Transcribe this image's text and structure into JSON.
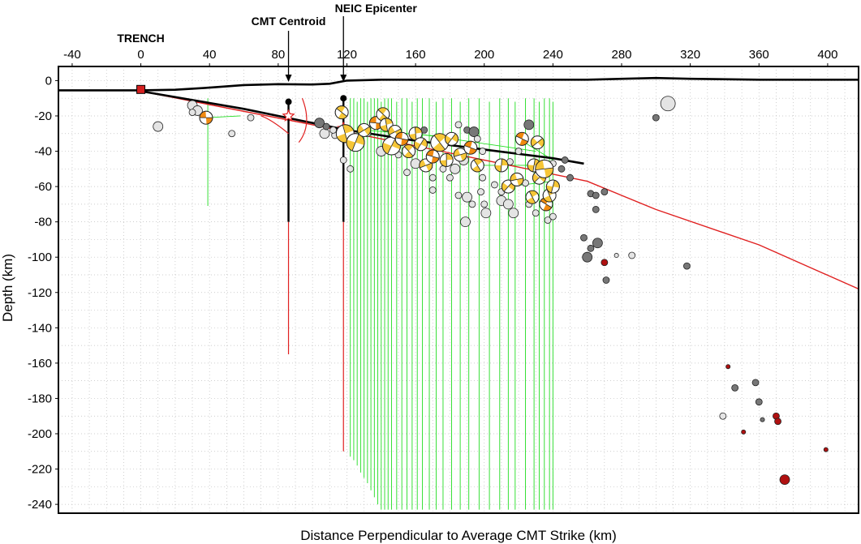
{
  "chart_data": {
    "type": "scatter",
    "title": "",
    "xlabel": "Distance Perpendicular to Average CMT Strike (km)",
    "ylabel": "Depth (km)",
    "xlim": [
      -48,
      418
    ],
    "ylim": [
      -245,
      8
    ],
    "xticks": [
      -40,
      0,
      40,
      80,
      120,
      160,
      200,
      240,
      280,
      320,
      360,
      400
    ],
    "yticks": [
      0,
      -20,
      -40,
      -60,
      -80,
      -100,
      -120,
      -140,
      -160,
      -180,
      -200,
      -220,
      -240
    ],
    "x_minor_step": 10,
    "y_minor_step": 10,
    "grid": "dotted",
    "annotations": [
      {
        "label": "TRENCH",
        "x": 0,
        "depth": -5
      },
      {
        "label": "CMT Centroid",
        "x": 86,
        "depth": -20
      },
      {
        "label": "NEIC Epicenter",
        "x": 118,
        "depth": -26
      }
    ],
    "topography": [
      [
        -48,
        -5.5
      ],
      [
        0,
        -5.5
      ],
      [
        20,
        -5.2
      ],
      [
        40,
        -4
      ],
      [
        60,
        -2.5
      ],
      [
        80,
        -2
      ],
      [
        100,
        -2.2
      ],
      [
        110,
        -1.8
      ],
      [
        120,
        0
      ],
      [
        140,
        0.5
      ],
      [
        200,
        0.5
      ],
      [
        260,
        0.5
      ],
      [
        300,
        1.5
      ],
      [
        320,
        1
      ],
      [
        360,
        0.5
      ],
      [
        418,
        0.5
      ]
    ],
    "slab_interface": [
      [
        0,
        -6
      ],
      [
        60,
        -16
      ],
      [
        100,
        -24
      ],
      [
        120,
        -28
      ],
      [
        160,
        -34
      ],
      [
        200,
        -39
      ],
      [
        240,
        -44
      ],
      [
        258,
        -47
      ]
    ],
    "reference_line": [
      [
        0,
        -6
      ],
      [
        100,
        -25
      ],
      [
        200,
        -45
      ],
      [
        260,
        -57
      ],
      [
        300,
        -73
      ],
      [
        360,
        -93
      ],
      [
        418,
        -118
      ]
    ],
    "cmt_marker": {
      "x": 86,
      "depth_top": -12,
      "depth_bottom": -80,
      "red_bottom": -155
    },
    "neic_marker": {
      "x": 118,
      "depth_top": -10,
      "depth_bottom": -80,
      "red_bottom": -210
    },
    "green_drop_lines": [
      {
        "x": 39,
        "top": -10,
        "bottom": -71
      },
      {
        "x": 122,
        "top": -10,
        "bottom": -213
      },
      {
        "x": 124,
        "top": -10,
        "bottom": -215
      },
      {
        "x": 126,
        "top": -12,
        "bottom": -218
      },
      {
        "x": 128,
        "top": -10,
        "bottom": -222
      },
      {
        "x": 130,
        "top": -10,
        "bottom": -225
      },
      {
        "x": 132,
        "top": -12,
        "bottom": -228
      },
      {
        "x": 134,
        "top": -10,
        "bottom": -232
      },
      {
        "x": 136,
        "top": -10,
        "bottom": -236
      },
      {
        "x": 138,
        "top": -10,
        "bottom": -240
      },
      {
        "x": 140,
        "top": -12,
        "bottom": -243
      },
      {
        "x": 142,
        "top": -10,
        "bottom": -243
      },
      {
        "x": 144,
        "top": -10,
        "bottom": -243
      },
      {
        "x": 146,
        "top": -10,
        "bottom": -243
      },
      {
        "x": 149,
        "top": -12,
        "bottom": -243
      },
      {
        "x": 152,
        "top": -10,
        "bottom": -243
      },
      {
        "x": 155,
        "top": -10,
        "bottom": -243
      },
      {
        "x": 158,
        "top": -12,
        "bottom": -243
      },
      {
        "x": 161,
        "top": -10,
        "bottom": -243
      },
      {
        "x": 164,
        "top": -10,
        "bottom": -243
      },
      {
        "x": 168,
        "top": -10,
        "bottom": -243
      },
      {
        "x": 172,
        "top": -12,
        "bottom": -243
      },
      {
        "x": 176,
        "top": -10,
        "bottom": -243
      },
      {
        "x": 181,
        "top": -10,
        "bottom": -243
      },
      {
        "x": 186,
        "top": -12,
        "bottom": -243
      },
      {
        "x": 191,
        "top": -10,
        "bottom": -243
      },
      {
        "x": 197,
        "top": -10,
        "bottom": -243
      },
      {
        "x": 203,
        "top": -12,
        "bottom": -243
      },
      {
        "x": 209,
        "top": -10,
        "bottom": -243
      },
      {
        "x": 214,
        "top": -10,
        "bottom": -243
      },
      {
        "x": 218,
        "top": -12,
        "bottom": -243
      },
      {
        "x": 224,
        "top": -10,
        "bottom": -243
      },
      {
        "x": 229,
        "top": -10,
        "bottom": -243
      },
      {
        "x": 232,
        "top": -12,
        "bottom": -243
      },
      {
        "x": 235,
        "top": -10,
        "bottom": -243
      },
      {
        "x": 238,
        "top": -10,
        "bottom": -243
      },
      {
        "x": 240,
        "top": -12,
        "bottom": -243
      }
    ],
    "mechanisms": [
      {
        "x": 38,
        "depth": -21,
        "mag": 3
      },
      {
        "x": 117,
        "depth": -18,
        "mag": 3
      },
      {
        "x": 119,
        "depth": -30,
        "mag": 4
      },
      {
        "x": 125,
        "depth": -35,
        "mag": 4
      },
      {
        "x": 130,
        "depth": -28,
        "mag": 3
      },
      {
        "x": 137,
        "depth": -24,
        "mag": 3
      },
      {
        "x": 141,
        "depth": -19,
        "mag": 3
      },
      {
        "x": 143,
        "depth": -25,
        "mag": 3
      },
      {
        "x": 146,
        "depth": -37,
        "mag": 4
      },
      {
        "x": 148,
        "depth": -29,
        "mag": 3
      },
      {
        "x": 152,
        "depth": -33,
        "mag": 3
      },
      {
        "x": 156,
        "depth": -40,
        "mag": 3
      },
      {
        "x": 160,
        "depth": -30,
        "mag": 3
      },
      {
        "x": 163,
        "depth": -36,
        "mag": 3
      },
      {
        "x": 166,
        "depth": -48,
        "mag": 3
      },
      {
        "x": 170,
        "depth": -43,
        "mag": 3
      },
      {
        "x": 174,
        "depth": -35,
        "mag": 4
      },
      {
        "x": 178,
        "depth": -45,
        "mag": 3
      },
      {
        "x": 181,
        "depth": -33,
        "mag": 3
      },
      {
        "x": 186,
        "depth": -42,
        "mag": 3
      },
      {
        "x": 192,
        "depth": -38,
        "mag": 3
      },
      {
        "x": 196,
        "depth": -48,
        "mag": 3
      },
      {
        "x": 210,
        "depth": -48,
        "mag": 3
      },
      {
        "x": 214,
        "depth": -60,
        "mag": 3
      },
      {
        "x": 219,
        "depth": -56,
        "mag": 3
      },
      {
        "x": 222,
        "depth": -33,
        "mag": 3
      },
      {
        "x": 228,
        "depth": -66,
        "mag": 3
      },
      {
        "x": 229,
        "depth": -48,
        "mag": 3
      },
      {
        "x": 232,
        "depth": -55,
        "mag": 3
      },
      {
        "x": 235,
        "depth": -50,
        "mag": 4
      },
      {
        "x": 236,
        "depth": -70,
        "mag": 3
      },
      {
        "x": 238,
        "depth": -65,
        "mag": 3
      },
      {
        "x": 240,
        "depth": -60,
        "mag": 3
      },
      {
        "x": 231,
        "depth": -35,
        "mag": 3
      }
    ],
    "events": [
      {
        "x": 10,
        "depth": -26,
        "size": 3,
        "shade": "light"
      },
      {
        "x": 30,
        "depth": -14,
        "size": 3,
        "shade": "light"
      },
      {
        "x": 33,
        "depth": -17,
        "size": 3,
        "shade": "light"
      },
      {
        "x": 30,
        "depth": -18,
        "size": 2,
        "shade": "light"
      },
      {
        "x": 53,
        "depth": -30,
        "size": 2,
        "shade": "light"
      },
      {
        "x": 64,
        "depth": -21,
        "size": 2,
        "shade": "light"
      },
      {
        "x": 104,
        "depth": -24,
        "size": 3,
        "shade": "dark"
      },
      {
        "x": 107,
        "depth": -30,
        "size": 3,
        "shade": "light"
      },
      {
        "x": 108,
        "depth": -26,
        "size": 2,
        "shade": "dark"
      },
      {
        "x": 113,
        "depth": -31,
        "size": 2,
        "shade": "light"
      },
      {
        "x": 118,
        "depth": -45,
        "size": 2,
        "shade": "light"
      },
      {
        "x": 122,
        "depth": -50,
        "size": 2,
        "shade": "light"
      },
      {
        "x": 135,
        "depth": -24,
        "size": 2,
        "shade": "dark"
      },
      {
        "x": 140,
        "depth": -40,
        "size": 3,
        "shade": "light"
      },
      {
        "x": 150,
        "depth": -42,
        "size": 2,
        "shade": "light"
      },
      {
        "x": 155,
        "depth": -52,
        "size": 2,
        "shade": "light"
      },
      {
        "x": 160,
        "depth": -47,
        "size": 3,
        "shade": "light"
      },
      {
        "x": 165,
        "depth": -28,
        "size": 2,
        "shade": "dark"
      },
      {
        "x": 170,
        "depth": -55,
        "size": 2,
        "shade": "light"
      },
      {
        "x": 176,
        "depth": -50,
        "size": 2,
        "shade": "light"
      },
      {
        "x": 180,
        "depth": -55,
        "size": 2,
        "shade": "light"
      },
      {
        "x": 183,
        "depth": -50,
        "size": 3,
        "shade": "light"
      },
      {
        "x": 185,
        "depth": -25,
        "size": 2,
        "shade": "light"
      },
      {
        "x": 188,
        "depth": -45,
        "size": 3,
        "shade": "light"
      },
      {
        "x": 190,
        "depth": -28,
        "size": 2,
        "shade": "dark"
      },
      {
        "x": 194,
        "depth": -29,
        "size": 3,
        "shade": "dark"
      },
      {
        "x": 196,
        "depth": -33,
        "size": 2,
        "shade": "light"
      },
      {
        "x": 199,
        "depth": -40,
        "size": 2,
        "shade": "light"
      },
      {
        "x": 198,
        "depth": -63,
        "size": 2,
        "shade": "light"
      },
      {
        "x": 185,
        "depth": -65,
        "size": 2,
        "shade": "light"
      },
      {
        "x": 190,
        "depth": -66,
        "size": 3,
        "shade": "light"
      },
      {
        "x": 193,
        "depth": -70,
        "size": 2,
        "shade": "light"
      },
      {
        "x": 200,
        "depth": -70,
        "size": 2,
        "shade": "light"
      },
      {
        "x": 201,
        "depth": -75,
        "size": 3,
        "shade": "light"
      },
      {
        "x": 206,
        "depth": -59,
        "size": 2,
        "shade": "light"
      },
      {
        "x": 210,
        "depth": -63,
        "size": 2,
        "shade": "light"
      },
      {
        "x": 210,
        "depth": -68,
        "size": 3,
        "shade": "light"
      },
      {
        "x": 214,
        "depth": -70,
        "size": 3,
        "shade": "light"
      },
      {
        "x": 215,
        "depth": -46,
        "size": 2,
        "shade": "light"
      },
      {
        "x": 220,
        "depth": -40,
        "size": 2,
        "shade": "light"
      },
      {
        "x": 217,
        "depth": -75,
        "size": 3,
        "shade": "light"
      },
      {
        "x": 224,
        "depth": -58,
        "size": 2,
        "shade": "light"
      },
      {
        "x": 226,
        "depth": -70,
        "size": 2,
        "shade": "light"
      },
      {
        "x": 230,
        "depth": -75,
        "size": 2,
        "shade": "light"
      },
      {
        "x": 237,
        "depth": -79,
        "size": 2,
        "shade": "light"
      },
      {
        "x": 240,
        "depth": -77,
        "size": 2,
        "shade": "light"
      },
      {
        "x": 226,
        "depth": -25,
        "size": 3,
        "shade": "dark"
      },
      {
        "x": 240,
        "depth": -47,
        "size": 2,
        "shade": "light"
      },
      {
        "x": 245,
        "depth": -50,
        "size": 2,
        "shade": "dark"
      },
      {
        "x": 250,
        "depth": -55,
        "size": 2,
        "shade": "dark"
      },
      {
        "x": 247,
        "depth": -45,
        "size": 2,
        "shade": "dark"
      },
      {
        "x": 262,
        "depth": -64,
        "size": 2,
        "shade": "dark"
      },
      {
        "x": 265,
        "depth": -65,
        "size": 2,
        "shade": "dark"
      },
      {
        "x": 270,
        "depth": -63,
        "size": 2,
        "shade": "dark"
      },
      {
        "x": 265,
        "depth": -73,
        "size": 2,
        "shade": "dark"
      },
      {
        "x": 189,
        "depth": -80,
        "size": 3,
        "shade": "light"
      },
      {
        "x": 170,
        "depth": -62,
        "size": 2,
        "shade": "light"
      },
      {
        "x": 258,
        "depth": -89,
        "size": 2,
        "shade": "dark"
      },
      {
        "x": 266,
        "depth": -92,
        "size": 3,
        "shade": "dark"
      },
      {
        "x": 260,
        "depth": -100,
        "size": 3,
        "shade": "dark"
      },
      {
        "x": 262,
        "depth": -95,
        "size": 2,
        "shade": "dark"
      },
      {
        "x": 270,
        "depth": -103,
        "size": 2,
        "shade": "red"
      },
      {
        "x": 277,
        "depth": -99,
        "size": 1,
        "shade": "light"
      },
      {
        "x": 286,
        "depth": -99,
        "size": 2,
        "shade": "light"
      },
      {
        "x": 271,
        "depth": -113,
        "size": 2,
        "shade": "dark"
      },
      {
        "x": 318,
        "depth": -105,
        "size": 2,
        "shade": "dark"
      },
      {
        "x": 300,
        "depth": -21,
        "size": 2,
        "shade": "dark"
      },
      {
        "x": 307,
        "depth": -13,
        "size": 4,
        "shade": "light"
      },
      {
        "x": 342,
        "depth": -162,
        "size": 1,
        "shade": "red"
      },
      {
        "x": 346,
        "depth": -174,
        "size": 2,
        "shade": "dark"
      },
      {
        "x": 358,
        "depth": -171,
        "size": 2,
        "shade": "dark"
      },
      {
        "x": 360,
        "depth": -182,
        "size": 2,
        "shade": "dark"
      },
      {
        "x": 339,
        "depth": -190,
        "size": 2,
        "shade": "light"
      },
      {
        "x": 362,
        "depth": -192,
        "size": 1,
        "shade": "dark"
      },
      {
        "x": 370,
        "depth": -190,
        "size": 2,
        "shade": "red"
      },
      {
        "x": 371,
        "depth": -193,
        "size": 2,
        "shade": "red"
      },
      {
        "x": 351,
        "depth": -199,
        "size": 1,
        "shade": "red"
      },
      {
        "x": 399,
        "depth": -209,
        "size": 1,
        "shade": "red"
      },
      {
        "x": 375,
        "depth": -226,
        "size": 3,
        "shade": "red"
      },
      {
        "x": 118,
        "depth": -29,
        "size": 2,
        "shade": "light"
      },
      {
        "x": 112,
        "depth": -28,
        "size": 2,
        "shade": "light"
      },
      {
        "x": 132,
        "depth": -30,
        "size": 2,
        "shade": "light"
      },
      {
        "x": 199,
        "depth": -55,
        "size": 2,
        "shade": "light"
      },
      {
        "x": 235,
        "depth": -52,
        "size": 2,
        "shade": "light"
      }
    ]
  }
}
